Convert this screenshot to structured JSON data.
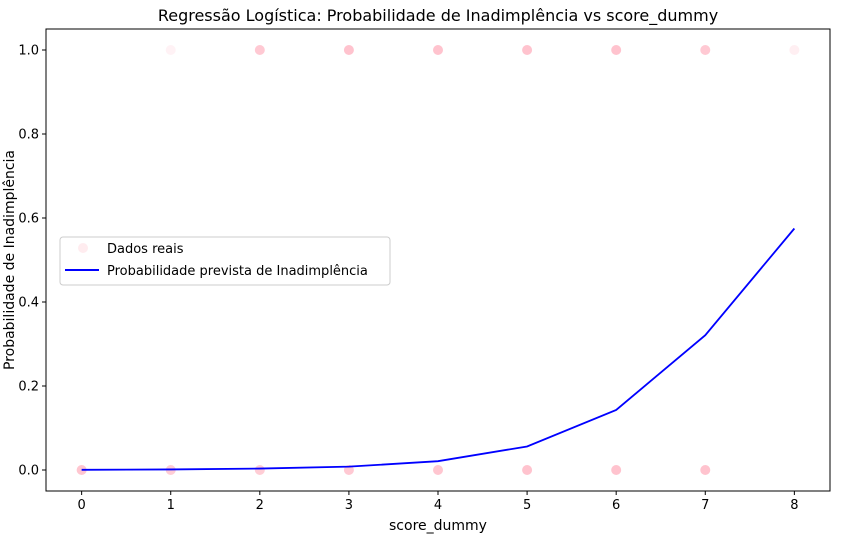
{
  "chart_data": {
    "type": "scatter",
    "title": "Regressão Logística: Probabilidade de Inadimplência vs score_dummy",
    "xlabel": "score_dummy",
    "ylabel": "Probabilidade de Inadimplência",
    "xlim": [
      -0.4,
      8.4
    ],
    "ylim": [
      -0.05,
      1.05
    ],
    "xticks": [
      0,
      1,
      2,
      3,
      4,
      5,
      6,
      7,
      8
    ],
    "xtick_labels": [
      "0",
      "1",
      "2",
      "3",
      "4",
      "5",
      "6",
      "7",
      "8"
    ],
    "yticks": [
      0.0,
      0.2,
      0.4,
      0.6,
      0.8,
      1.0
    ],
    "ytick_labels": [
      "0.0",
      "0.2",
      "0.4",
      "0.6",
      "0.8",
      "1.0"
    ],
    "grid": false,
    "legend_placement": "center-left",
    "series": [
      {
        "name": "Dados reais",
        "kind": "scatter",
        "color": "#ffc0cb",
        "points": [
          {
            "x": 0,
            "y": 0,
            "opacity": 0.9
          },
          {
            "x": 1,
            "y": 0,
            "opacity": 0.8
          },
          {
            "x": 2,
            "y": 0,
            "opacity": 0.8
          },
          {
            "x": 3,
            "y": 0,
            "opacity": 0.85
          },
          {
            "x": 4,
            "y": 0,
            "opacity": 0.9
          },
          {
            "x": 5,
            "y": 0,
            "opacity": 0.95
          },
          {
            "x": 6,
            "y": 0,
            "opacity": 0.95
          },
          {
            "x": 7,
            "y": 0,
            "opacity": 0.95
          },
          {
            "x": 1,
            "y": 1,
            "opacity": 0.2
          },
          {
            "x": 2,
            "y": 1,
            "opacity": 0.85
          },
          {
            "x": 3,
            "y": 1,
            "opacity": 0.95
          },
          {
            "x": 4,
            "y": 1,
            "opacity": 0.95
          },
          {
            "x": 5,
            "y": 1,
            "opacity": 0.95
          },
          {
            "x": 6,
            "y": 1,
            "opacity": 0.95
          },
          {
            "x": 7,
            "y": 1,
            "opacity": 0.85
          },
          {
            "x": 8,
            "y": 1,
            "opacity": 0.25
          }
        ]
      },
      {
        "name": "Probabilidade prevista de Inadimplência",
        "kind": "line",
        "color": "#0000ff",
        "x": [
          0,
          1,
          2,
          3,
          4,
          5,
          6,
          7,
          8
        ],
        "y": [
          0.0005,
          0.0013,
          0.0034,
          0.008,
          0.021,
          0.056,
          0.143,
          0.321,
          0.575
        ]
      }
    ]
  }
}
